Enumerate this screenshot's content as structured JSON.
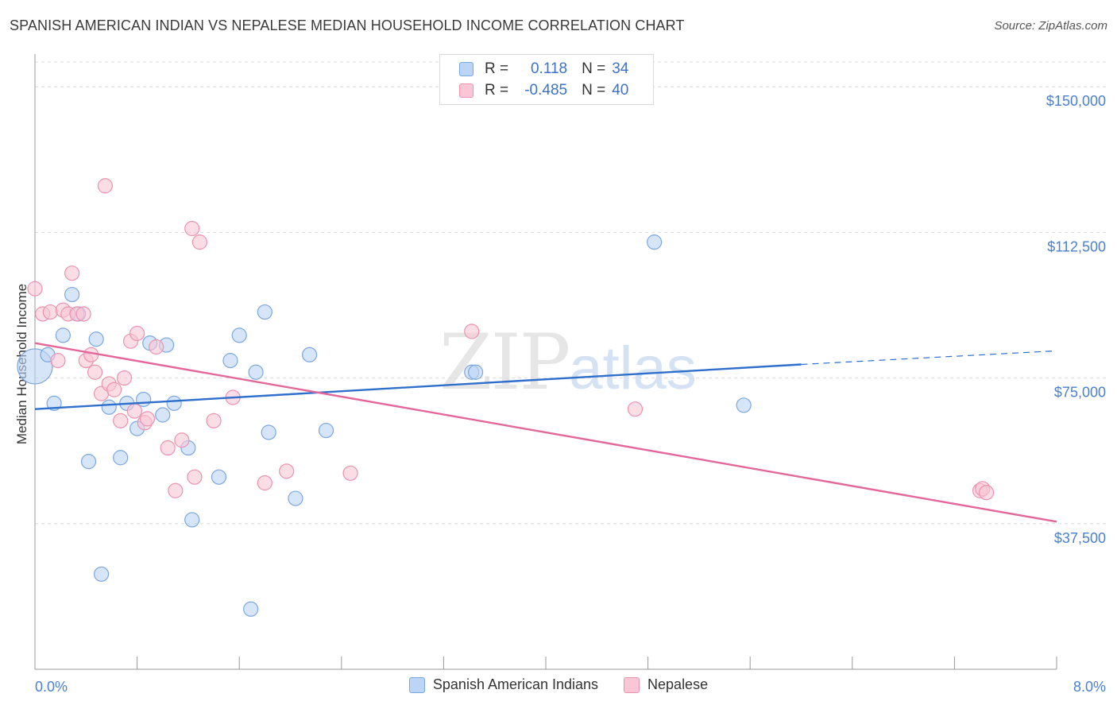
{
  "header": {
    "title": "SPANISH AMERICAN INDIAN VS NEPALESE MEDIAN HOUSEHOLD INCOME CORRELATION CHART",
    "source": "Source: ZipAtlas.com"
  },
  "watermark": {
    "zip": "ZIP",
    "atlas": "atlas"
  },
  "legend_top": {
    "rows": [
      {
        "r_label": "R =",
        "r_value": "0.118",
        "n_label": "N =",
        "n_value": "34"
      },
      {
        "r_label": "R =",
        "r_value": "-0.485",
        "n_label": "N =",
        "n_value": "40"
      }
    ]
  },
  "legend_bottom": [
    "Spanish American Indians",
    "Nepalese"
  ],
  "colors": {
    "blue_fill": "#bcd4f5",
    "blue_stroke": "#7ba7e0",
    "blue_line": "#2f6fcc",
    "pink_fill": "#f8c6d5",
    "pink_stroke": "#eb93b1",
    "pink_line": "#e4679a",
    "tick_text": "#4a80cf",
    "grid": "#dcdcdc"
  },
  "chart_data": {
    "type": "scatter",
    "ylabel": "Median Household Income",
    "xlim": [
      0,
      8
    ],
    "ylim": [
      0,
      157000
    ],
    "x_tick_labels": [
      {
        "value": 0,
        "label": "0.0%"
      },
      {
        "value": 8,
        "label": "8.0%"
      }
    ],
    "y_ticks": [
      {
        "value": 37500,
        "label": "$37,500"
      },
      {
        "value": 75000,
        "label": "$75,000"
      },
      {
        "value": 112500,
        "label": "$112,500"
      },
      {
        "value": 150000,
        "label": "$150,000"
      }
    ],
    "series": [
      {
        "name": "Spanish American Indians",
        "color": "blue",
        "points": [
          [
            0.0,
            78000,
            3
          ],
          [
            0.1,
            81000,
            1
          ],
          [
            0.15,
            68500,
            1
          ],
          [
            0.22,
            86000,
            1
          ],
          [
            0.29,
            96500,
            1
          ],
          [
            0.34,
            91500,
            1
          ],
          [
            0.42,
            53500,
            1
          ],
          [
            0.48,
            85000,
            1
          ],
          [
            0.52,
            24500,
            1
          ],
          [
            0.58,
            67500,
            1
          ],
          [
            0.67,
            54500,
            1
          ],
          [
            0.72,
            68500,
            1
          ],
          [
            0.8,
            62000,
            1
          ],
          [
            0.85,
            69500,
            1
          ],
          [
            0.9,
            84000,
            1
          ],
          [
            1.0,
            65500,
            1
          ],
          [
            1.03,
            83500,
            1
          ],
          [
            1.09,
            68500,
            1
          ],
          [
            1.2,
            57000,
            1
          ],
          [
            1.23,
            38500,
            1
          ],
          [
            1.44,
            49500,
            1
          ],
          [
            1.53,
            79500,
            1
          ],
          [
            1.6,
            86000,
            1
          ],
          [
            1.69,
            15500,
            1
          ],
          [
            1.73,
            76500,
            1
          ],
          [
            1.8,
            92000,
            1
          ],
          [
            1.83,
            61000,
            1
          ],
          [
            2.04,
            44000,
            1
          ],
          [
            2.15,
            81000,
            1
          ],
          [
            2.28,
            61500,
            1
          ],
          [
            3.42,
            76500,
            1
          ],
          [
            3.45,
            76500,
            1
          ],
          [
            4.85,
            110000,
            1
          ],
          [
            5.55,
            68000,
            1
          ]
        ],
        "trend": {
          "x": [
            0.0,
            6.0
          ],
          "y": [
            67000,
            78500
          ]
        },
        "trend_dashed": {
          "x": [
            6.0,
            8.0
          ],
          "y": [
            78500,
            82000
          ]
        }
      },
      {
        "name": "Nepalese",
        "color": "pink",
        "points": [
          [
            0.0,
            98000,
            1
          ],
          [
            0.06,
            91500,
            1
          ],
          [
            0.12,
            92000,
            1
          ],
          [
            0.18,
            79500,
            1
          ],
          [
            0.22,
            92500,
            1
          ],
          [
            0.26,
            91500,
            1
          ],
          [
            0.29,
            102000,
            1
          ],
          [
            0.33,
            91500,
            1
          ],
          [
            0.38,
            91500,
            1
          ],
          [
            0.4,
            79500,
            1
          ],
          [
            0.44,
            81000,
            1
          ],
          [
            0.47,
            76500,
            1
          ],
          [
            0.52,
            71000,
            1
          ],
          [
            0.55,
            124500,
            1
          ],
          [
            0.58,
            73500,
            1
          ],
          [
            0.62,
            72000,
            1
          ],
          [
            0.67,
            64000,
            1
          ],
          [
            0.7,
            75000,
            1
          ],
          [
            0.75,
            84500,
            1
          ],
          [
            0.78,
            66500,
            1
          ],
          [
            0.8,
            86500,
            1
          ],
          [
            0.86,
            63500,
            1
          ],
          [
            0.88,
            64500,
            1
          ],
          [
            0.95,
            83000,
            1
          ],
          [
            1.04,
            57000,
            1
          ],
          [
            1.1,
            46000,
            1
          ],
          [
            1.15,
            59000,
            1
          ],
          [
            1.23,
            113500,
            1
          ],
          [
            1.25,
            49500,
            1
          ],
          [
            1.29,
            110000,
            1
          ],
          [
            1.4,
            64000,
            1
          ],
          [
            1.55,
            70000,
            1
          ],
          [
            1.8,
            48000,
            1
          ],
          [
            1.97,
            51000,
            1
          ],
          [
            2.47,
            50500,
            1
          ],
          [
            3.42,
            87000,
            1
          ],
          [
            4.7,
            67000,
            1
          ],
          [
            7.4,
            46000,
            1
          ],
          [
            7.42,
            46500,
            1
          ],
          [
            7.45,
            45500,
            1
          ]
        ],
        "trend": {
          "x": [
            0.0,
            8.0
          ],
          "y": [
            84000,
            38000
          ]
        }
      }
    ]
  }
}
